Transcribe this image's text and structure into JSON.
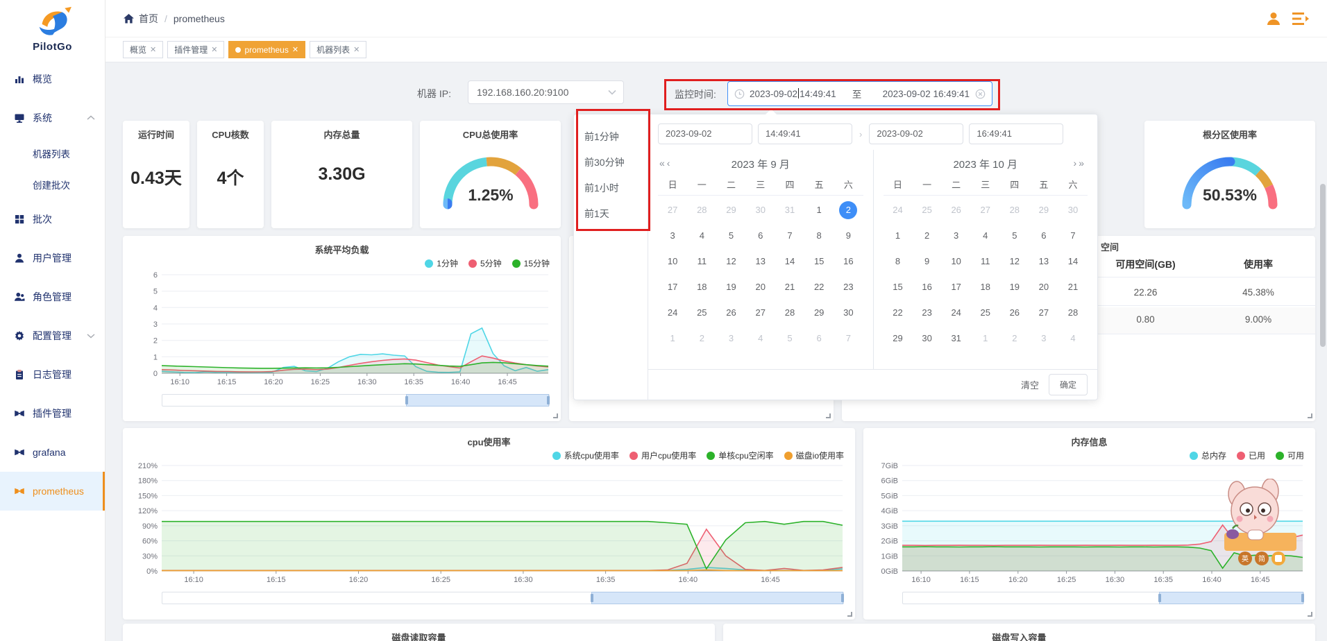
{
  "brand": {
    "name": "PilotGo"
  },
  "header": {
    "breadcrumb": {
      "home": "首页",
      "separator": "/",
      "current": "prometheus"
    }
  },
  "tabs": [
    {
      "label": "概览",
      "active": false
    },
    {
      "label": "插件管理",
      "active": false
    },
    {
      "label": "prometheus",
      "active": true
    },
    {
      "label": "机器列表",
      "active": false
    }
  ],
  "sidebar": {
    "items": [
      {
        "label": "概览",
        "icon": "overview-icon"
      },
      {
        "label": "系统",
        "icon": "system-icon",
        "chevron": "up"
      },
      {
        "label": "机器列表",
        "sub": true
      },
      {
        "label": "创建批次",
        "sub": true
      },
      {
        "label": "批次",
        "icon": "batch-icon"
      },
      {
        "label": "用户管理",
        "icon": "user-icon"
      },
      {
        "label": "角色管理",
        "icon": "role-icon"
      },
      {
        "label": "配置管理",
        "icon": "config-icon",
        "chevron": "down"
      },
      {
        "label": "日志管理",
        "icon": "log-icon"
      },
      {
        "label": "插件管理",
        "icon": "plugin-icon"
      },
      {
        "label": "grafana",
        "icon": "plugin-icon"
      },
      {
        "label": "prometheus",
        "icon": "plugin-icon",
        "active": true
      }
    ]
  },
  "toolbar": {
    "ip_label": "机器 IP:",
    "ip_value": "192.168.160.20:9100",
    "time_label": "监控时间:",
    "start_date": "2023-09-02",
    "start_time": "14:49:41",
    "separator": "至",
    "end_value": "2023-09-02 16:49:41"
  },
  "datepicker": {
    "shortcuts": [
      "前1分钟",
      "前30分钟",
      "前1小时",
      "前1天"
    ],
    "inputs": {
      "start_date": "2023-09-02",
      "start_time": "14:49:41",
      "end_date": "2023-09-02",
      "end_time": "16:49:41"
    },
    "panels": [
      {
        "nav": "prev",
        "title": "2023 年 9 月",
        "weekdays": [
          "日",
          "一",
          "二",
          "三",
          "四",
          "五",
          "六"
        ],
        "rows": [
          [
            {
              "d": 27,
              "o": 1
            },
            {
              "d": 28,
              "o": 1
            },
            {
              "d": 29,
              "o": 1
            },
            {
              "d": 30,
              "o": 1
            },
            {
              "d": 31,
              "o": 1
            },
            1,
            {
              "d": 2,
              "s": 1
            }
          ],
          [
            3,
            4,
            5,
            6,
            7,
            8,
            9
          ],
          [
            10,
            11,
            12,
            13,
            14,
            15,
            16
          ],
          [
            17,
            18,
            19,
            20,
            21,
            22,
            23
          ],
          [
            24,
            25,
            26,
            27,
            28,
            29,
            30
          ],
          [
            {
              "d": 1,
              "o": 1
            },
            {
              "d": 2,
              "o": 1
            },
            {
              "d": 3,
              "o": 1
            },
            {
              "d": 4,
              "o": 1
            },
            {
              "d": 5,
              "o": 1
            },
            {
              "d": 6,
              "o": 1
            },
            {
              "d": 7,
              "o": 1
            }
          ]
        ]
      },
      {
        "nav": "next",
        "title": "2023 年 10 月",
        "weekdays": [
          "日",
          "一",
          "二",
          "三",
          "四",
          "五",
          "六"
        ],
        "rows": [
          [
            {
              "d": 24,
              "o": 1
            },
            {
              "d": 25,
              "o": 1
            },
            {
              "d": 26,
              "o": 1
            },
            {
              "d": 27,
              "o": 1
            },
            {
              "d": 28,
              "o": 1
            },
            {
              "d": 29,
              "o": 1
            },
            {
              "d": 30,
              "o": 1
            }
          ],
          [
            1,
            2,
            3,
            4,
            5,
            6,
            7
          ],
          [
            8,
            9,
            10,
            11,
            12,
            13,
            14
          ],
          [
            15,
            16,
            17,
            18,
            19,
            20,
            21
          ],
          [
            22,
            23,
            24,
            25,
            26,
            27,
            28
          ],
          [
            29,
            30,
            31,
            {
              "d": 1,
              "o": 1
            },
            {
              "d": 2,
              "o": 1
            },
            {
              "d": 3,
              "o": 1
            },
            {
              "d": 4,
              "o": 1
            }
          ]
        ]
      }
    ],
    "clear": "清空",
    "ok": "确定"
  },
  "stats": [
    {
      "title": "运行时间",
      "value": "0.43天"
    },
    {
      "title": "CPU核数",
      "value": "4个"
    },
    {
      "title": "内存总量",
      "value": "3.30G"
    }
  ],
  "disk_table": {
    "partial_title": "空间",
    "columns": [
      "可用空间(GB)",
      "使用率"
    ],
    "rows": [
      [
        "22.26",
        "45.38%"
      ],
      [
        "0.80",
        "9.00%"
      ]
    ]
  },
  "bottom_cards": [
    "磁盘读取容量",
    "磁盘写入容量"
  ],
  "sticker": {
    "badges": [
      "英",
      "简"
    ]
  },
  "colors": {
    "accent_orange": "#f0a335",
    "sidebar_navy": "#20326e",
    "active_blue": "#3e8ef7",
    "annotation_red": "#e01f1f"
  },
  "chart_data": [
    {
      "id": "load",
      "type": "area",
      "title": "系统平均负载",
      "ylim": [
        0,
        6
      ],
      "yticks": [
        0,
        1,
        2,
        3,
        4,
        5,
        6
      ],
      "ysuffix": "",
      "grid": true,
      "legend_position": "top-right",
      "xticks": [
        {
          "label": "16:10",
          "f": 0.047
        },
        {
          "label": "16:15",
          "f": 0.168
        },
        {
          "label": "16:20",
          "f": 0.289
        },
        {
          "label": "16:25",
          "f": 0.41
        },
        {
          "label": "16:30",
          "f": 0.531
        },
        {
          "label": "16:35",
          "f": 0.652
        },
        {
          "label": "16:40",
          "f": 0.773
        },
        {
          "label": "16:45",
          "f": 0.894
        }
      ],
      "series": [
        {
          "name": "1分钟",
          "color": "#4fd6e6",
          "values": [
            0.12,
            0.08,
            0.05,
            0.04,
            0.08,
            0.05,
            0.04,
            0.06,
            0.05,
            0.04,
            0.06,
            0.35,
            0.42,
            0.15,
            0.1,
            0.3,
            0.7,
            1.0,
            1.15,
            1.12,
            1.18,
            1.1,
            1.05,
            0.4,
            0.12,
            0.06,
            0.05,
            0.08,
            2.4,
            2.75,
            1.2,
            0.45,
            0.15,
            0.35,
            0.12,
            0.22
          ]
        },
        {
          "name": "5分钟",
          "color": "#ee5f72",
          "values": [
            0.22,
            0.2,
            0.17,
            0.15,
            0.13,
            0.11,
            0.1,
            0.09,
            0.08,
            0.08,
            0.1,
            0.18,
            0.24,
            0.25,
            0.22,
            0.25,
            0.35,
            0.48,
            0.6,
            0.7,
            0.78,
            0.84,
            0.87,
            0.8,
            0.65,
            0.5,
            0.4,
            0.32,
            0.7,
            1.05,
            0.92,
            0.75,
            0.62,
            0.52,
            0.44,
            0.38
          ]
        },
        {
          "name": "15分钟",
          "color": "#2cb22a",
          "values": [
            0.46,
            0.44,
            0.42,
            0.4,
            0.38,
            0.36,
            0.34,
            0.32,
            0.31,
            0.3,
            0.3,
            0.31,
            0.32,
            0.33,
            0.32,
            0.33,
            0.36,
            0.4,
            0.44,
            0.48,
            0.52,
            0.55,
            0.58,
            0.56,
            0.52,
            0.48,
            0.44,
            0.42,
            0.52,
            0.63,
            0.66,
            0.64,
            0.58,
            0.52,
            0.47,
            0.43
          ]
        }
      ],
      "zoom_window": [
        0.63,
        1
      ]
    },
    {
      "id": "cpu",
      "type": "area",
      "title": "cpu使用率",
      "ylim": [
        0,
        210
      ],
      "yticks": [
        0,
        30,
        60,
        90,
        120,
        150,
        180,
        210
      ],
      "ysuffix": "%",
      "grid": true,
      "legend_position": "top-right",
      "xticks": [
        {
          "label": "16:10",
          "f": 0.047
        },
        {
          "label": "16:15",
          "f": 0.168
        },
        {
          "label": "16:20",
          "f": 0.289
        },
        {
          "label": "16:25",
          "f": 0.41
        },
        {
          "label": "16:30",
          "f": 0.531
        },
        {
          "label": "16:35",
          "f": 0.652
        },
        {
          "label": "16:40",
          "f": 0.773
        },
        {
          "label": "16:45",
          "f": 0.894
        }
      ],
      "series": [
        {
          "name": "系统cpu使用率",
          "color": "#4fd6e6",
          "values": [
            0.8,
            0.8,
            0.8,
            0.8,
            0.8,
            0.8,
            0.8,
            0.8,
            0.8,
            0.8,
            0.8,
            0.8,
            0.8,
            0.8,
            0.8,
            0.8,
            0.8,
            0.8,
            0.8,
            0.8,
            0.8,
            0.8,
            0.8,
            0.8,
            0.8,
            0.8,
            1.0,
            3.0,
            7.0,
            5.0,
            2.0,
            0.8,
            0.8,
            0.8,
            0.8,
            4.0
          ]
        },
        {
          "name": "用户cpu使用率",
          "color": "#ee5f72",
          "values": [
            1,
            1,
            1,
            1,
            1,
            1,
            1,
            1,
            1,
            1,
            1,
            1,
            1,
            1,
            1,
            1,
            1,
            1,
            1,
            1,
            1,
            1,
            1,
            1,
            1,
            1,
            2,
            15,
            83,
            30,
            3,
            1,
            5,
            1,
            2,
            7
          ]
        },
        {
          "name": "单核cpu空闲率",
          "color": "#2cb22a",
          "values": [
            98.5,
            98.5,
            98.5,
            98.5,
            98.5,
            98.5,
            98.5,
            98.5,
            98.5,
            98.5,
            98.5,
            98.5,
            98.5,
            98.5,
            98.5,
            98.5,
            98.5,
            98.5,
            98.5,
            98.5,
            98.5,
            98.5,
            98.5,
            98.5,
            98.5,
            98.5,
            96,
            93,
            4,
            62,
            96,
            98.5,
            93,
            98.5,
            98.5,
            91
          ]
        },
        {
          "name": "磁盘io使用率",
          "color": "#ef9f2f",
          "values": [
            0.5,
            0.5,
            0.5,
            0.5,
            0.5,
            0.5,
            0.5,
            0.5,
            0.5,
            0.5,
            0.5,
            0.5,
            0.5,
            0.5,
            0.5,
            0.5,
            0.5,
            0.5,
            0.5,
            0.5,
            0.5,
            0.5,
            0.5,
            0.5,
            0.5,
            0.5,
            0.5,
            0.5,
            2,
            0.5,
            0.5,
            0.5,
            0.5,
            0.5,
            0.5,
            0.5
          ]
        }
      ],
      "zoom_window": [
        0.63,
        1
      ]
    },
    {
      "id": "mem",
      "type": "area",
      "title": "内存信息",
      "ylim": [
        0,
        7
      ],
      "yticks": [
        0,
        1,
        2,
        3,
        4,
        5,
        6,
        7
      ],
      "ysuffix": "GiB",
      "grid": true,
      "legend_position": "top-right",
      "xticks": [
        {
          "label": "16:10",
          "f": 0.047
        },
        {
          "label": "16:15",
          "f": 0.168
        },
        {
          "label": "16:20",
          "f": 0.289
        },
        {
          "label": "16:25",
          "f": 0.41
        },
        {
          "label": "16:30",
          "f": 0.531
        },
        {
          "label": "16:35",
          "f": 0.652
        },
        {
          "label": "16:40",
          "f": 0.773
        },
        {
          "label": "16:45",
          "f": 0.894
        }
      ],
      "series": [
        {
          "name": "总内存",
          "color": "#4fd6e6",
          "values": [
            3.3,
            3.3,
            3.3,
            3.3,
            3.3,
            3.3,
            3.3,
            3.3,
            3.3,
            3.3,
            3.3,
            3.3,
            3.3,
            3.3,
            3.3,
            3.3,
            3.3,
            3.3,
            3.3,
            3.3,
            3.3,
            3.3,
            3.3,
            3.3,
            3.3,
            3.3,
            3.3,
            3.3,
            3.3,
            3.3,
            3.3,
            3.3,
            3.3,
            3.3,
            3.3,
            3.3
          ]
        },
        {
          "name": "已用",
          "color": "#ee5f72",
          "values": [
            1.7,
            1.7,
            1.69,
            1.7,
            1.7,
            1.71,
            1.7,
            1.7,
            1.69,
            1.7,
            1.7,
            1.7,
            1.71,
            1.7,
            1.7,
            1.7,
            1.71,
            1.7,
            1.7,
            1.71,
            1.7,
            1.7,
            1.71,
            1.7,
            1.7,
            1.72,
            1.78,
            1.95,
            3.05,
            2.05,
            2.2,
            2.15,
            2.2,
            2.17,
            2.2,
            2.38
          ]
        },
        {
          "name": "可用",
          "color": "#2cb22a",
          "values": [
            1.6,
            1.6,
            1.61,
            1.6,
            1.6,
            1.59,
            1.6,
            1.6,
            1.61,
            1.6,
            1.6,
            1.6,
            1.59,
            1.6,
            1.6,
            1.6,
            1.59,
            1.6,
            1.6,
            1.59,
            1.6,
            1.6,
            1.59,
            1.6,
            1.6,
            1.58,
            1.52,
            1.35,
            0.18,
            1.2,
            1.0,
            1.05,
            1.0,
            1.03,
            1.0,
            0.9
          ]
        }
      ],
      "zoom_window": [
        0.64,
        1
      ]
    },
    {
      "id": "gauge-cpu",
      "type": "gauge",
      "title": "CPU总使用率",
      "value_label": "1.25%",
      "percent": 1.25,
      "progress_color": "#3d8ef7",
      "segments": [
        {
          "to": 47,
          "color": "#59d5de"
        },
        {
          "to": 72,
          "color": "#e2a33d"
        },
        {
          "to": 100,
          "color": "#f96f80"
        }
      ]
    },
    {
      "id": "gauge-root",
      "type": "gauge",
      "title": "根分区使用率",
      "value_label": "50.53%",
      "percent": 50.53,
      "progress_color": "#4194f7",
      "segments": [
        {
          "to": 73,
          "color": "#59d5de"
        },
        {
          "to": 86,
          "color": "#e2a33d"
        },
        {
          "to": 100,
          "color": "#f96f80"
        }
      ]
    }
  ]
}
